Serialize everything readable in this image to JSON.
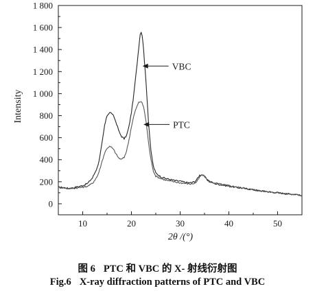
{
  "caption": {
    "cn_number": "图 6",
    "cn_text": "PTC 和 VBC 的 X- 射线衍射图",
    "en_number": "Fig.6",
    "en_text": "X-ray diffraction patterns of PTC and VBC"
  },
  "chart_data": {
    "type": "line",
    "title": "",
    "xlabel": "2θ /(°)",
    "ylabel": "Intensity",
    "xlim": [
      5,
      55
    ],
    "ylim": [
      -100,
      1800
    ],
    "x_ticks": [
      10,
      20,
      30,
      40,
      50
    ],
    "x_tick_labels": [
      "10",
      "20",
      "30",
      "40",
      "50"
    ],
    "y_ticks": [
      0,
      200,
      400,
      600,
      800,
      1000,
      1200,
      1400,
      1600,
      1800
    ],
    "y_tick_labels": [
      "0",
      "200",
      "400",
      "600",
      "800",
      "1 000",
      "1 200",
      "1 400",
      "1 600",
      "1 800"
    ],
    "grid": false,
    "legend": "none",
    "annotations": [
      {
        "text": "VBC",
        "series": "VBC",
        "arrow_to": [
          22.0,
          1250
        ]
      },
      {
        "text": "PTC",
        "series": "PTC",
        "arrow_to": [
          22.2,
          720
        ]
      }
    ],
    "series": [
      {
        "name": "VBC",
        "color": "#222222",
        "x": [
          5,
          6,
          7,
          8,
          9,
          10,
          11,
          12,
          13,
          13.5,
          14,
          14.5,
          15,
          15.5,
          16,
          16.5,
          17,
          17.5,
          18,
          18.5,
          19,
          19.5,
          20,
          20.5,
          21,
          21.5,
          21.8,
          22,
          22.2,
          22.5,
          23,
          23.5,
          24,
          24.5,
          25,
          26,
          27,
          28,
          29,
          30,
          31,
          32,
          33,
          33.5,
          34,
          34.5,
          35,
          35.5,
          36,
          37,
          38,
          40,
          42,
          44,
          46,
          48,
          50,
          52,
          54,
          55
        ],
        "y": [
          150,
          148,
          140,
          145,
          155,
          165,
          185,
          235,
          330,
          420,
          560,
          710,
          800,
          830,
          820,
          780,
          720,
          650,
          610,
          590,
          620,
          700,
          830,
          1000,
          1200,
          1420,
          1540,
          1560,
          1530,
          1400,
          1100,
          750,
          480,
          340,
          280,
          245,
          230,
          220,
          210,
          205,
          195,
          190,
          200,
          225,
          260,
          265,
          245,
          220,
          200,
          185,
          175,
          160,
          145,
          135,
          120,
          110,
          100,
          90,
          85,
          75
        ]
      },
      {
        "name": "PTC",
        "color": "#555555",
        "x": [
          5,
          6,
          7,
          8,
          9,
          10,
          11,
          12,
          13,
          13.5,
          14,
          14.5,
          15,
          15.5,
          16,
          16.5,
          17,
          17.5,
          18,
          18.5,
          19,
          19.5,
          20,
          20.5,
          21,
          21.5,
          22,
          22.5,
          23,
          23.5,
          24,
          24.5,
          25,
          26,
          27,
          28,
          29,
          30,
          31,
          32,
          33,
          33.5,
          34,
          34.5,
          35,
          35.5,
          36,
          37,
          38,
          40,
          42,
          44,
          46,
          48,
          50,
          52,
          54,
          55
        ],
        "y": [
          150,
          145,
          138,
          140,
          145,
          150,
          160,
          185,
          250,
          310,
          390,
          460,
          505,
          520,
          510,
          480,
          440,
          410,
          405,
          420,
          480,
          580,
          700,
          800,
          870,
          920,
          930,
          880,
          750,
          560,
          400,
          300,
          250,
          230,
          215,
          205,
          198,
          190,
          185,
          180,
          185,
          205,
          240,
          265,
          250,
          225,
          205,
          190,
          180,
          165,
          150,
          135,
          120,
          110,
          100,
          90,
          82,
          75
        ]
      }
    ]
  }
}
